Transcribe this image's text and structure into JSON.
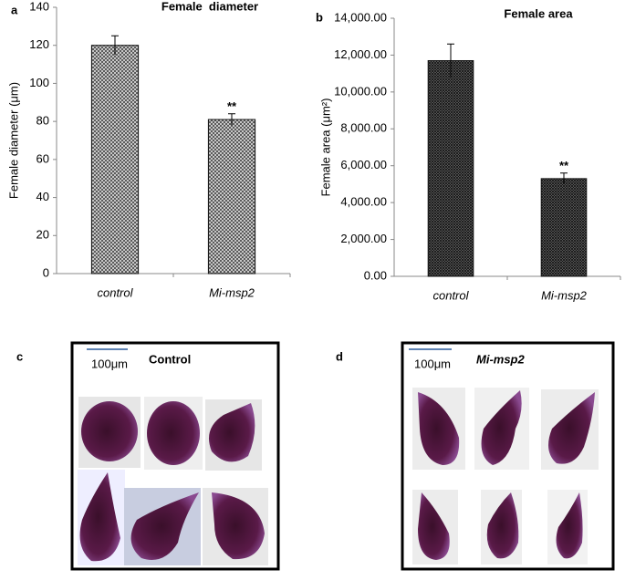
{
  "chart_data": [
    {
      "type": "bar",
      "panel": "a",
      "title": "Female  diameter",
      "y_label": "Female diameter (μm)",
      "categories": [
        "control",
        "Mi-msp2"
      ],
      "values": [
        120,
        81
      ],
      "errors": [
        5,
        3
      ],
      "annotation": "**",
      "color": "#555555",
      "ylim": [
        0,
        140
      ],
      "yticks": [
        0,
        20,
        40,
        60,
        80,
        100,
        120,
        140
      ]
    },
    {
      "type": "bar",
      "panel": "b",
      "title": "Female area",
      "y_label": "Female area (μm²)",
      "categories": [
        "control",
        "Mi-msp2"
      ],
      "values": [
        11700,
        5300
      ],
      "errors": [
        900,
        300
      ],
      "annotation": "**",
      "color": "#333333",
      "ylim": [
        0,
        14000
      ],
      "yticks": [
        {
          "value": 0,
          "label": "0.00"
        },
        {
          "value": 2000,
          "label": "2,000.00"
        },
        {
          "value": 4000,
          "label": "4,000.00"
        },
        {
          "value": 6000,
          "label": "6,000.00"
        },
        {
          "value": 8000,
          "label": "8,000.00"
        },
        {
          "value": 10000,
          "label": "10,000.00"
        },
        {
          "value": 12000,
          "label": "12,000.00"
        },
        {
          "value": 14000,
          "label": "14,000.00"
        }
      ]
    }
  ],
  "panels": [
    {
      "label": "c",
      "title": "Control",
      "scale_bar": "100μm"
    },
    {
      "label": "d",
      "title": "Mi-msp2",
      "scale_bar": "100μm"
    }
  ]
}
